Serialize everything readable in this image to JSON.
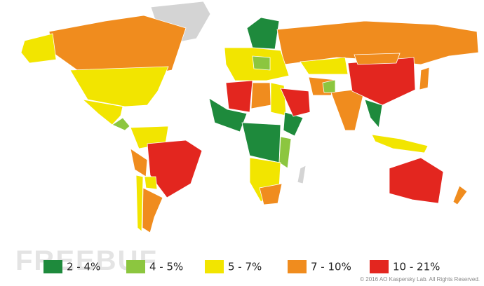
{
  "legend": [
    {
      "label": "2 - 4%",
      "color": "#1e8a3c"
    },
    {
      "label": "4 - 5%",
      "color": "#8cc63f"
    },
    {
      "label": "5 - 7%",
      "color": "#f2e500"
    },
    {
      "label": "7 - 10%",
      "color": "#f08c1e"
    },
    {
      "label": "10 - 21%",
      "color": "#e3261f"
    }
  ],
  "watermark": "FREEBUF",
  "copyright": "© 2016 AO Kaspersky Lab. All Rights Reserved."
}
